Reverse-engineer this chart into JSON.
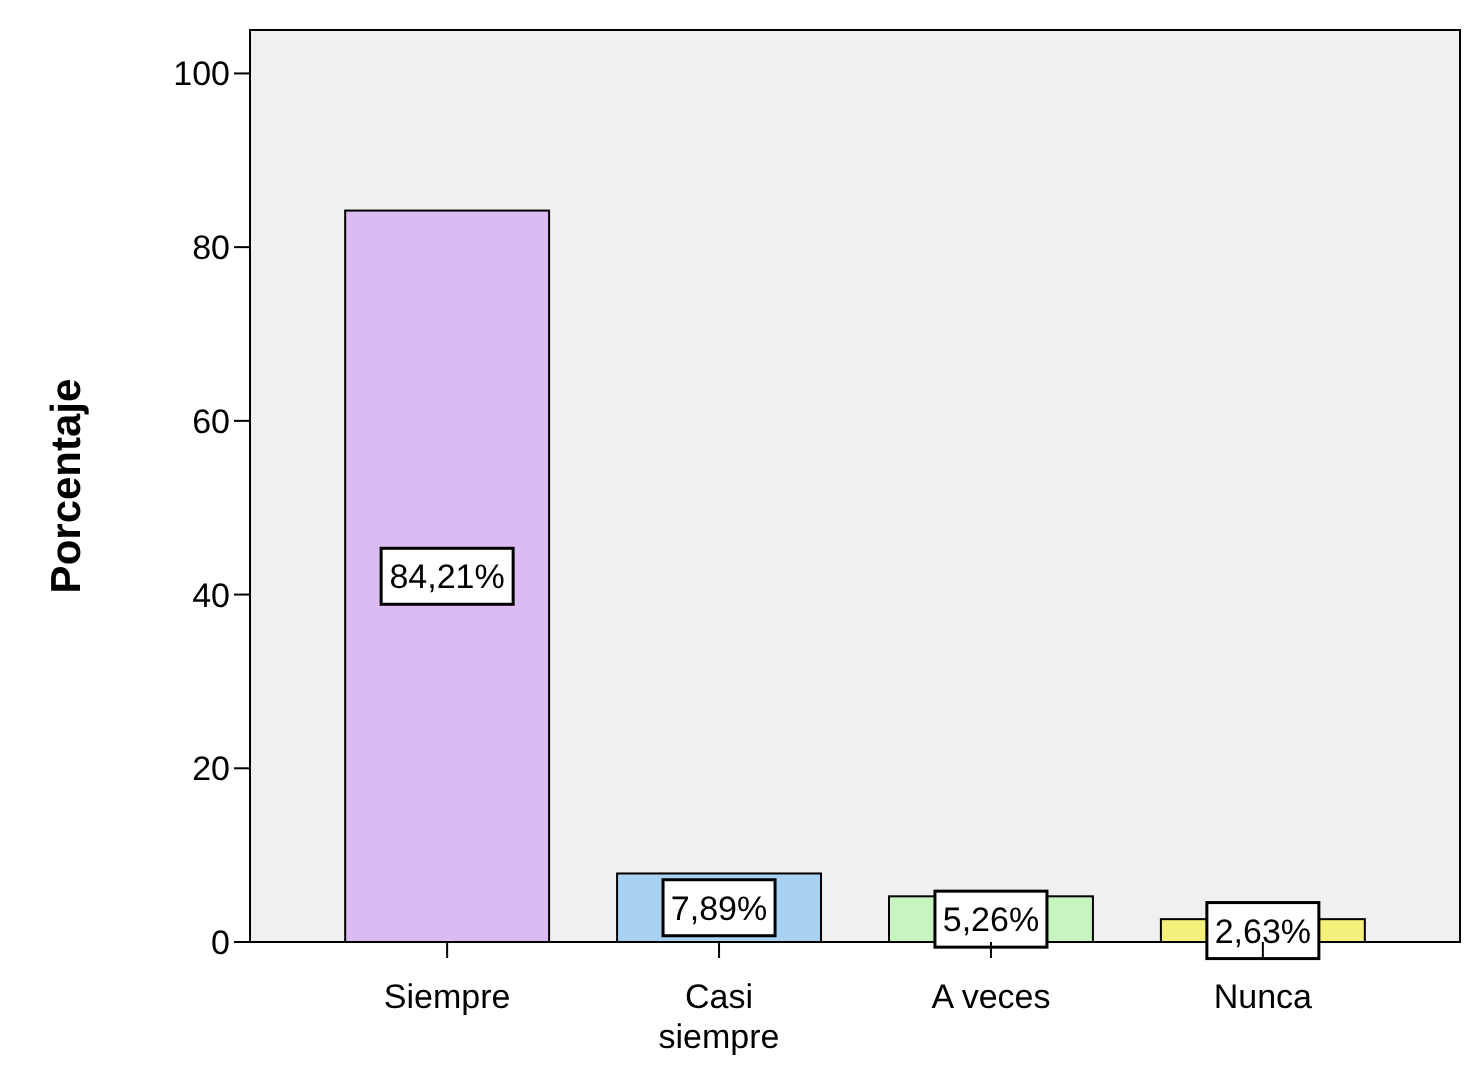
{
  "chart_data": {
    "type": "bar",
    "ylabel": "Porcentaje",
    "categories": [
      "Siempre",
      "Casi siempre",
      "A veces",
      "Nunca"
    ],
    "values": [
      84.21,
      7.89,
      5.26,
      2.63
    ],
    "colors": [
      "#dcbaf2",
      "#a9d1f2",
      "#c6f5c0",
      "#f5f07c"
    ],
    "value_labels": [
      "84,21%",
      "7,89%",
      "5,26%",
      "2,63%"
    ],
    "ylim": [
      0,
      105
    ],
    "yticks": [
      0,
      20,
      40,
      60,
      80,
      100
    ],
    "grid": false
  }
}
